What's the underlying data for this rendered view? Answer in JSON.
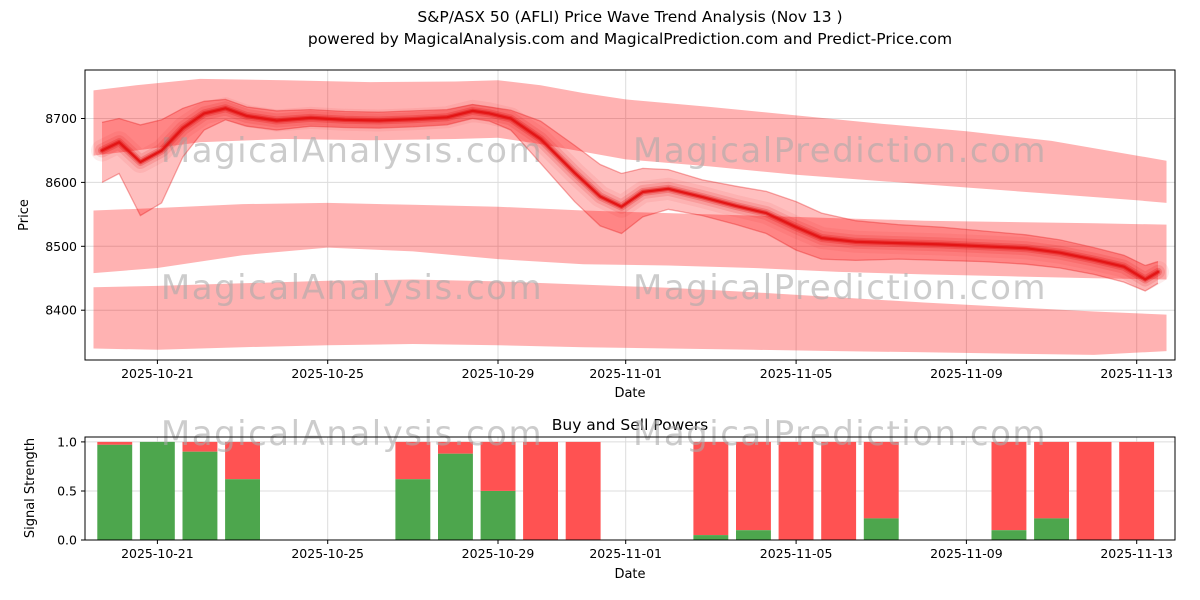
{
  "figure": {
    "title": "S&P/ASX 50 (AFLI) Price Wave Trend Analysis (Nov 13 )",
    "subtitle": "powered by MagicalAnalysis.com and MagicalPrediction.com and Predict-Price.com",
    "watermarks": [
      "MagicalAnalysis.com",
      "MagicalPrediction.com"
    ]
  },
  "colors": {
    "band": "#ff0000",
    "line": "#e31515",
    "bar_buy": "#4da64d",
    "bar_sell": "#ff5252",
    "watermark": "#aaaaaa",
    "grid": "#dcdcdc",
    "axis": "#000000"
  },
  "chart_data": [
    {
      "name": "price-wave-trend",
      "type": "area",
      "title": "",
      "xlabel": "Date",
      "ylabel": "Price",
      "ylim": [
        8322,
        8776
      ],
      "y_ticks": [
        8400,
        8500,
        8600,
        8700
      ],
      "x_start_date": "2025-10-19",
      "x_domain_days": [
        0.3,
        25.9
      ],
      "x_ticks": [
        {
          "day": 2,
          "label": "2025-10-21"
        },
        {
          "day": 6,
          "label": "2025-10-25"
        },
        {
          "day": 10,
          "label": "2025-10-29"
        },
        {
          "day": 13,
          "label": "2025-11-01"
        },
        {
          "day": 17,
          "label": "2025-11-05"
        },
        {
          "day": 21,
          "label": "2025-11-09"
        },
        {
          "day": 25,
          "label": "2025-11-13"
        }
      ],
      "bands": [
        {
          "name": "upper-forecast-band",
          "opacity": 0.3,
          "days": [
            0.5,
            1.5,
            3,
            5,
            7,
            9,
            10,
            11,
            12,
            13,
            15,
            17,
            19,
            21,
            23,
            25,
            25.7
          ],
          "upper": [
            8744,
            8752,
            8762,
            8760,
            8757,
            8758,
            8760,
            8752,
            8740,
            8730,
            8718,
            8705,
            8692,
            8680,
            8665,
            8642,
            8634
          ],
          "lower": [
            8642,
            8650,
            8663,
            8668,
            8666,
            8668,
            8670,
            8660,
            8648,
            8636,
            8625,
            8612,
            8602,
            8592,
            8582,
            8572,
            8568
          ]
        },
        {
          "name": "middle-forecast-band",
          "opacity": 0.3,
          "days": [
            0.5,
            2,
            4,
            6,
            8,
            10,
            12,
            14,
            16,
            18,
            20,
            22,
            24,
            25.7
          ],
          "upper": [
            8556,
            8560,
            8566,
            8568,
            8565,
            8562,
            8556,
            8552,
            8548,
            8544,
            8540,
            8538,
            8536,
            8534
          ],
          "lower": [
            8458,
            8466,
            8486,
            8498,
            8492,
            8480,
            8472,
            8470,
            8466,
            8460,
            8456,
            8453,
            8450,
            8448
          ]
        },
        {
          "name": "lower-forecast-band",
          "opacity": 0.3,
          "days": [
            0.5,
            2,
            4,
            6,
            8,
            10,
            12,
            14,
            16,
            18,
            20,
            22,
            24,
            25.7
          ],
          "upper": [
            8436,
            8438,
            8442,
            8446,
            8448,
            8445,
            8440,
            8435,
            8428,
            8420,
            8412,
            8405,
            8398,
            8393
          ],
          "lower": [
            8340,
            8338,
            8342,
            8345,
            8347,
            8345,
            8342,
            8340,
            8338,
            8336,
            8334,
            8332,
            8330,
            8336
          ]
        },
        {
          "name": "price-spread-band",
          "opacity": 0.25,
          "days": [
            0.7,
            1.1,
            1.6,
            2.1,
            2.6,
            3.1,
            3.6,
            4.1,
            4.8,
            5.6,
            6.4,
            7.2,
            8.0,
            8.8,
            9.4,
            9.8,
            10.3,
            11.0,
            11.8,
            12.4,
            12.9,
            13.4,
            14.0,
            14.8,
            15.6,
            16.3,
            17.0,
            17.6,
            18.4,
            19.4,
            20.4,
            21.4,
            22.4,
            23.2,
            24.0,
            24.7,
            25.2,
            25.5
          ],
          "upper": [
            8694,
            8700,
            8690,
            8698,
            8716,
            8727,
            8730,
            8718,
            8712,
            8714,
            8711,
            8710,
            8712,
            8714,
            8722,
            8718,
            8713,
            8696,
            8658,
            8628,
            8614,
            8622,
            8620,
            8604,
            8594,
            8586,
            8570,
            8552,
            8540,
            8534,
            8530,
            8524,
            8518,
            8510,
            8498,
            8486,
            8470,
            8476
          ],
          "lower": [
            8600,
            8614,
            8548,
            8568,
            8640,
            8682,
            8698,
            8688,
            8682,
            8688,
            8686,
            8685,
            8687,
            8690,
            8700,
            8696,
            8682,
            8630,
            8570,
            8532,
            8520,
            8546,
            8558,
            8548,
            8534,
            8520,
            8494,
            8480,
            8478,
            8480,
            8478,
            8476,
            8472,
            8466,
            8456,
            8444,
            8430,
            8442
          ]
        }
      ],
      "main_line": {
        "name": "price-trend-line",
        "days": [
          0.7,
          1.1,
          1.6,
          2.1,
          2.6,
          3.1,
          3.6,
          4.1,
          4.8,
          5.6,
          6.4,
          7.2,
          8.0,
          8.8,
          9.4,
          9.8,
          10.3,
          11.0,
          11.8,
          12.4,
          12.9,
          13.4,
          14.0,
          14.8,
          15.6,
          16.3,
          17.0,
          17.6,
          18.4,
          19.4,
          20.4,
          21.4,
          22.4,
          23.2,
          24.0,
          24.7,
          25.2,
          25.5
        ],
        "values": [
          8650,
          8663,
          8632,
          8650,
          8685,
          8708,
          8716,
          8704,
          8697,
          8701,
          8698,
          8697,
          8699,
          8702,
          8712,
          8708,
          8700,
          8668,
          8615,
          8578,
          8562,
          8585,
          8590,
          8577,
          8563,
          8552,
          8530,
          8513,
          8507,
          8505,
          8503,
          8500,
          8497,
          8490,
          8479,
          8468,
          8448,
          8460
        ]
      }
    },
    {
      "name": "buy-sell-powers",
      "type": "bar",
      "title": "Buy and Sell Powers",
      "xlabel": "Date",
      "ylabel": "Signal Strength",
      "ylim": [
        0,
        1.05
      ],
      "y_ticks": [
        0.0,
        0.5,
        1.0
      ],
      "x_ticks": [
        {
          "day": 2,
          "label": "2025-10-21"
        },
        {
          "day": 6,
          "label": "2025-10-25"
        },
        {
          "day": 10,
          "label": "2025-10-29"
        },
        {
          "day": 13,
          "label": "2025-11-01"
        },
        {
          "day": 17,
          "label": "2025-11-05"
        },
        {
          "day": 21,
          "label": "2025-11-09"
        },
        {
          "day": 25,
          "label": "2025-11-13"
        }
      ],
      "bars": [
        {
          "date": "2025-10-20",
          "day": 1,
          "buy": 0.97,
          "sell": 0.03
        },
        {
          "date": "2025-10-21",
          "day": 2,
          "buy": 1.0,
          "sell": 0.0
        },
        {
          "date": "2025-10-22",
          "day": 3,
          "buy": 0.9,
          "sell": 0.1
        },
        {
          "date": "2025-10-23",
          "day": 4,
          "buy": 0.62,
          "sell": 0.38
        },
        {
          "date": "2025-10-27",
          "day": 8,
          "buy": 0.62,
          "sell": 0.38
        },
        {
          "date": "2025-10-28",
          "day": 9,
          "buy": 0.88,
          "sell": 0.12
        },
        {
          "date": "2025-10-29",
          "day": 10,
          "buy": 0.5,
          "sell": 0.5
        },
        {
          "date": "2025-10-30",
          "day": 11,
          "buy": 0.0,
          "sell": 1.0
        },
        {
          "date": "2025-10-31",
          "day": 12,
          "buy": 0.0,
          "sell": 1.0
        },
        {
          "date": "2025-11-03",
          "day": 15,
          "buy": 0.05,
          "sell": 0.95
        },
        {
          "date": "2025-11-04",
          "day": 16,
          "buy": 0.1,
          "sell": 0.9
        },
        {
          "date": "2025-11-05",
          "day": 17,
          "buy": 0.0,
          "sell": 1.0
        },
        {
          "date": "2025-11-06",
          "day": 18,
          "buy": 0.0,
          "sell": 1.0
        },
        {
          "date": "2025-11-07",
          "day": 19,
          "buy": 0.22,
          "sell": 0.78
        },
        {
          "date": "2025-11-10",
          "day": 22,
          "buy": 0.1,
          "sell": 0.9
        },
        {
          "date": "2025-11-11",
          "day": 23,
          "buy": 0.22,
          "sell": 0.78
        },
        {
          "date": "2025-11-12",
          "day": 24,
          "buy": 0.0,
          "sell": 1.0
        },
        {
          "date": "2025-11-13",
          "day": 25,
          "buy": 0.0,
          "sell": 1.0
        }
      ]
    }
  ]
}
